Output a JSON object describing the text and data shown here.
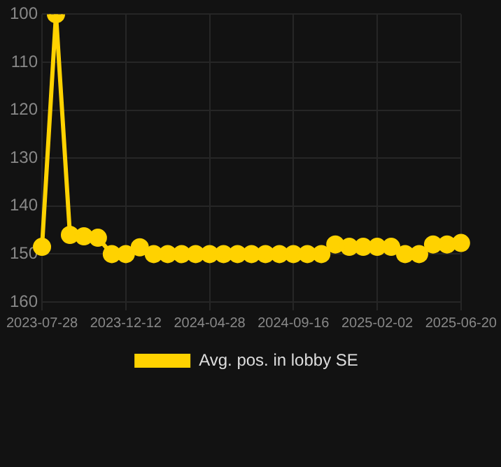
{
  "chart_data": {
    "type": "line",
    "categories": [
      "2023-07-28",
      null,
      null,
      null,
      null,
      null,
      "2023-12-12",
      null,
      null,
      null,
      null,
      null,
      "2024-04-28",
      null,
      null,
      null,
      null,
      null,
      "2024-09-16",
      null,
      null,
      null,
      null,
      null,
      "2025-02-02",
      null,
      null,
      null,
      null,
      null,
      "2025-06-20"
    ],
    "series": [
      {
        "name": "Avg. pos. in lobby SE",
        "color": "#ffd200",
        "values": [
          148.5,
          100,
          146,
          146.3,
          146.6,
          150,
          150,
          148.6,
          150,
          150,
          150,
          150,
          150,
          150,
          150,
          150,
          150,
          150,
          150,
          150,
          150,
          148,
          148.5,
          148.5,
          148.5,
          148.5,
          150,
          150,
          148,
          148,
          147.7
        ]
      }
    ],
    "ylim": [
      160,
      100
    ],
    "yticks": [
      100,
      110,
      120,
      130,
      140,
      150,
      160
    ],
    "grid": true,
    "legend": "bottom",
    "marker": "circle",
    "line_style": "solid"
  }
}
